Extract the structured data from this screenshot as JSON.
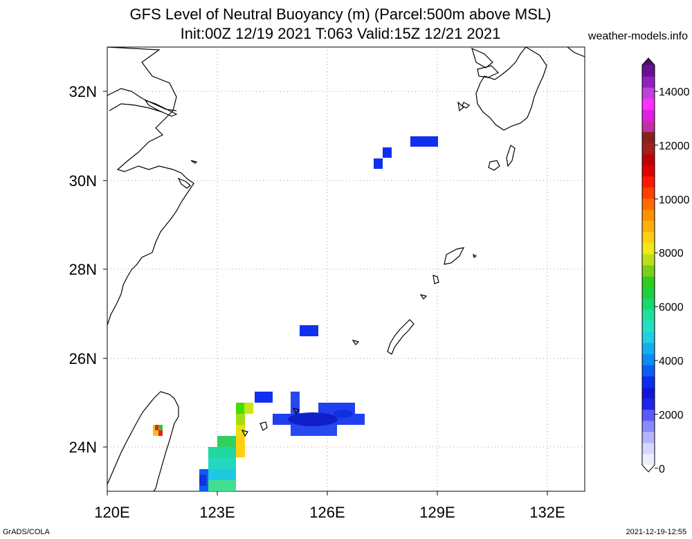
{
  "title_line1": "GFS Level of Neutral Buoyancy (m) (Parcel:500m above MSL)",
  "title_line2": "Init:00Z 12/19 2021 T:063 Valid:15Z 12/21 2021",
  "site": "weather-models.info",
  "footer_left": "GrADS/COLA",
  "footer_right": "2021-12-19-12:55",
  "lon_labels": [
    "120E",
    "123E",
    "126E",
    "129E",
    "132E"
  ],
  "lat_labels": [
    "32N",
    "30N",
    "28N",
    "26N",
    "24N"
  ],
  "colorbar": {
    "labels": [
      "14000",
      "12000",
      "10000",
      "8000",
      "6000",
      "4000",
      "2000",
      "0"
    ],
    "colors": [
      "#eeeeff",
      "#d6d6ff",
      "#b4b4ff",
      "#8a8aff",
      "#5a5aff",
      "#2222ee",
      "#1018d8",
      "#0a2ef0",
      "#0a5cf5",
      "#0a8cf5",
      "#12aef0",
      "#1ecfe6",
      "#22e0c8",
      "#20e0a0",
      "#18d870",
      "#20d040",
      "#30cc20",
      "#7ad018",
      "#bce018",
      "#f0e818",
      "#ffd010",
      "#ffb008",
      "#ff9000",
      "#ff6a00",
      "#ff4000",
      "#ff1800",
      "#e00000",
      "#c00000",
      "#a02020",
      "#882020",
      "#c030a0",
      "#e020e0",
      "#ff30ff",
      "#c040d8",
      "#9020c0",
      "#6a1090"
    ]
  }
}
